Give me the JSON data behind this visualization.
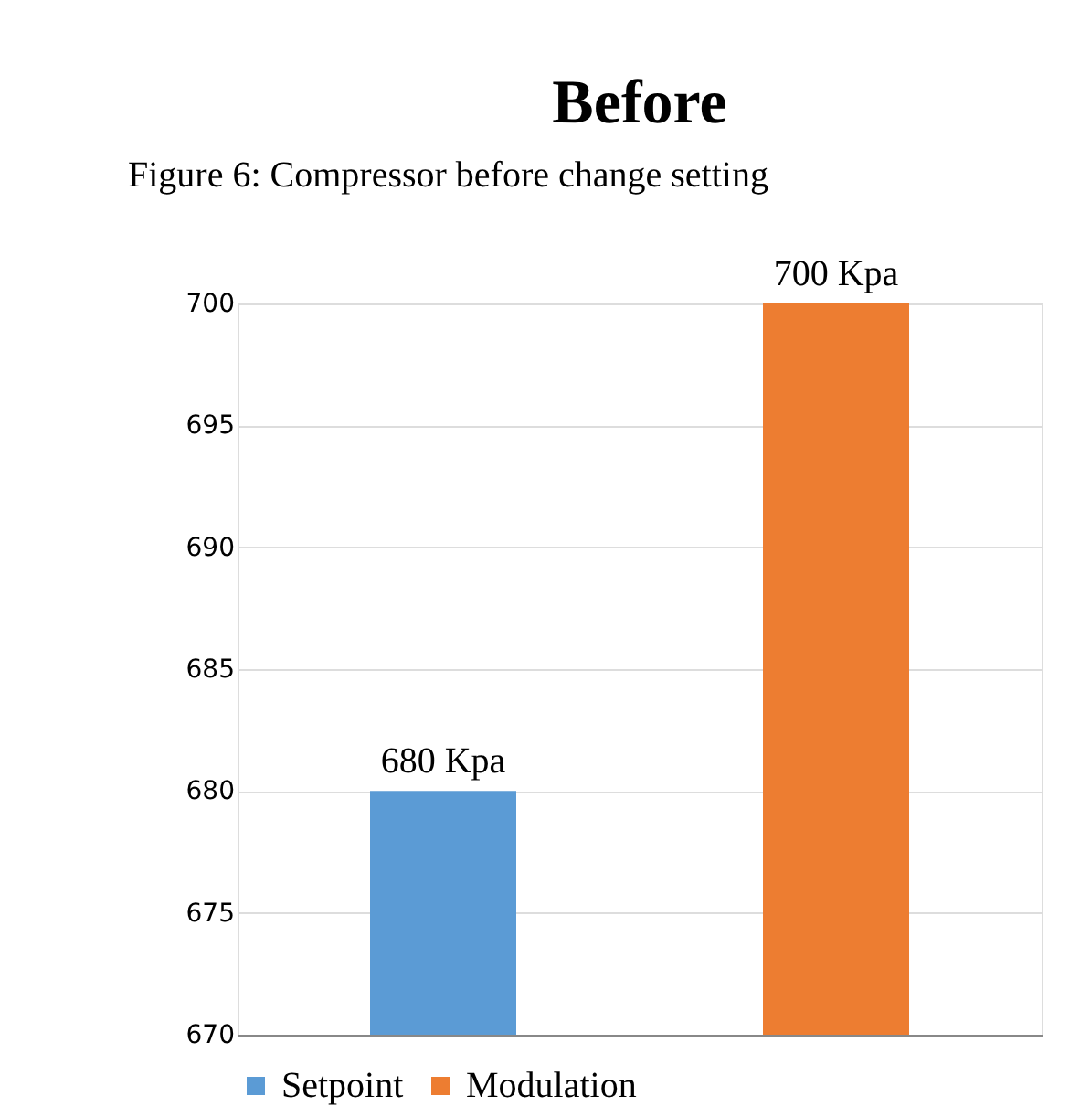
{
  "chart_data": {
    "type": "bar",
    "title": "Before",
    "annotations": [
      "Figure 6: Compressor before change setting"
    ],
    "categories": [
      null
    ],
    "series": [
      {
        "name": "Setpoint",
        "color": "#5b9bd5",
        "values": [
          680
        ],
        "value_labels": [
          "680 Kpa"
        ]
      },
      {
        "name": "Modulation",
        "color": "#ed7d31",
        "values": [
          700
        ],
        "value_labels": [
          "700 Kpa"
        ]
      }
    ],
    "ylim": [
      670,
      700
    ],
    "yticks": [
      670,
      675,
      680,
      685,
      690,
      695,
      700
    ],
    "grid": "y",
    "legend": "bottom"
  }
}
